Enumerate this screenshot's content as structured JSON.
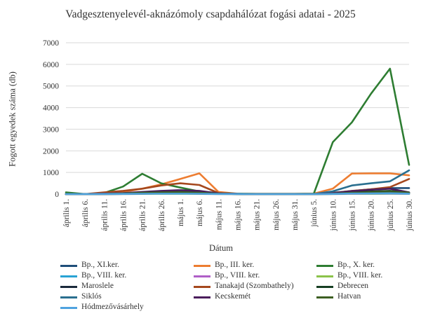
{
  "chart_data": {
    "type": "line",
    "title": "Vadgesztenyelevél-aknázómoly csapdahálózat fogási adatai - 2025",
    "xlabel": "Dátum",
    "ylabel": "Fogott egyedek száma (db)",
    "ylim": [
      0,
      7000
    ],
    "yticks": [
      "0",
      "1000",
      "2000",
      "3000",
      "4000",
      "5000",
      "6000",
      "7000"
    ],
    "grid": true,
    "legend_position": "bottom",
    "categories": [
      "április 1.",
      "április 6.",
      "április 11.",
      "április 16.",
      "április 21.",
      "április 26.",
      "május 1.",
      "május 6.",
      "május 11.",
      "május 16.",
      "május 21.",
      "május 26.",
      "május 31.",
      "június 5.",
      "június 10.",
      "június 15.",
      "június 20.",
      "június 25.",
      "június 30."
    ],
    "x": [
      1,
      6,
      11,
      16,
      21,
      26,
      31,
      36,
      41,
      46,
      51,
      56,
      61,
      66,
      71,
      76,
      81,
      86,
      91
    ],
    "series": [
      {
        "name": "Bp., XI.ker.",
        "color": "#1f4e79",
        "points": [
          [
            1,
            0
          ],
          [
            6,
            0
          ],
          [
            11,
            20
          ],
          [
            16,
            40
          ],
          [
            21,
            60
          ],
          [
            26,
            90
          ],
          [
            31,
            120
          ],
          [
            36,
            90
          ],
          [
            41,
            30
          ],
          [
            46,
            10
          ],
          [
            51,
            5
          ],
          [
            56,
            5
          ],
          [
            61,
            5
          ],
          [
            66,
            5
          ],
          [
            71,
            60
          ],
          [
            76,
            140
          ],
          [
            81,
            220
          ],
          [
            86,
            280
          ],
          [
            91,
            280
          ]
        ]
      },
      {
        "name": "Bp., III. ker.",
        "color": "#ed7d31",
        "points": [
          [
            1,
            0
          ],
          [
            6,
            0
          ],
          [
            11,
            30
          ],
          [
            16,
            100
          ],
          [
            21,
            250
          ],
          [
            26,
            450
          ],
          [
            31,
            700
          ],
          [
            36,
            960
          ],
          [
            41,
            100
          ],
          [
            46,
            20
          ],
          [
            51,
            10
          ],
          [
            56,
            10
          ],
          [
            61,
            10
          ],
          [
            66,
            20
          ],
          [
            71,
            250
          ],
          [
            76,
            950
          ],
          [
            81,
            960
          ],
          [
            86,
            960
          ],
          [
            91,
            870
          ]
        ]
      },
      {
        "name": "Bp., X. ker.",
        "color": "#2e7d32",
        "points": [
          [
            1,
            80
          ],
          [
            6,
            0
          ],
          [
            11,
            50
          ],
          [
            16,
            350
          ],
          [
            21,
            940
          ],
          [
            26,
            500
          ],
          [
            31,
            300
          ],
          [
            36,
            120
          ],
          [
            41,
            50
          ],
          [
            46,
            20
          ],
          [
            51,
            10
          ],
          [
            56,
            10
          ],
          [
            61,
            10
          ],
          [
            66,
            20
          ],
          [
            71,
            2400
          ],
          [
            76,
            3320
          ],
          [
            81,
            4640
          ],
          [
            86,
            5800
          ],
          [
            91,
            1350
          ]
        ]
      },
      {
        "name": "Bp., VIII. ker.",
        "color": "#29a3d4",
        "points": [
          [
            1,
            0
          ],
          [
            6,
            0
          ],
          [
            11,
            0
          ],
          [
            16,
            5
          ],
          [
            21,
            10
          ],
          [
            26,
            10
          ],
          [
            31,
            10
          ],
          [
            36,
            10
          ],
          [
            41,
            5
          ],
          [
            46,
            5
          ],
          [
            51,
            0
          ],
          [
            56,
            0
          ],
          [
            61,
            0
          ],
          [
            66,
            0
          ],
          [
            71,
            5
          ],
          [
            76,
            10
          ],
          [
            81,
            10
          ],
          [
            86,
            20
          ],
          [
            91,
            10
          ]
        ]
      },
      {
        "name": "Bp., VIII. ker.",
        "color": "#b05fc7",
        "points": [
          [
            1,
            0
          ],
          [
            6,
            0
          ],
          [
            11,
            0
          ],
          [
            16,
            5
          ],
          [
            21,
            10
          ],
          [
            26,
            15
          ],
          [
            31,
            15
          ],
          [
            36,
            10
          ],
          [
            41,
            5
          ],
          [
            46,
            5
          ],
          [
            51,
            0
          ],
          [
            56,
            0
          ],
          [
            61,
            0
          ],
          [
            66,
            0
          ],
          [
            71,
            5
          ],
          [
            76,
            10
          ],
          [
            81,
            15
          ],
          [
            86,
            20
          ],
          [
            91,
            15
          ]
        ]
      },
      {
        "name": "Bp., VIII. ker.",
        "color": "#8bc34a",
        "points": [
          [
            1,
            0
          ],
          [
            6,
            0
          ],
          [
            11,
            0
          ],
          [
            16,
            5
          ],
          [
            21,
            10
          ],
          [
            26,
            10
          ],
          [
            31,
            10
          ],
          [
            36,
            10
          ],
          [
            41,
            5
          ],
          [
            46,
            5
          ],
          [
            51,
            0
          ],
          [
            56,
            0
          ],
          [
            61,
            0
          ],
          [
            66,
            0
          ],
          [
            71,
            5
          ],
          [
            76,
            15
          ],
          [
            81,
            20
          ],
          [
            86,
            25
          ],
          [
            91,
            15
          ]
        ]
      },
      {
        "name": "Maroslele",
        "color": "#1b2a3c",
        "points": [
          [
            1,
            0
          ],
          [
            6,
            0
          ],
          [
            11,
            0
          ],
          [
            16,
            10
          ],
          [
            21,
            20
          ],
          [
            26,
            30
          ],
          [
            31,
            30
          ],
          [
            36,
            20
          ],
          [
            41,
            10
          ],
          [
            46,
            5
          ],
          [
            51,
            0
          ],
          [
            56,
            0
          ],
          [
            61,
            0
          ],
          [
            66,
            0
          ],
          [
            71,
            10
          ],
          [
            76,
            30
          ],
          [
            81,
            60
          ],
          [
            86,
            80
          ],
          [
            91,
            50
          ]
        ]
      },
      {
        "name": "Tanakajd (Szombathely)",
        "color": "#a5481e",
        "points": [
          [
            1,
            0
          ],
          [
            6,
            0
          ],
          [
            11,
            80
          ],
          [
            16,
            150
          ],
          [
            21,
            250
          ],
          [
            26,
            400
          ],
          [
            31,
            500
          ],
          [
            36,
            420
          ],
          [
            41,
            50
          ],
          [
            46,
            10
          ],
          [
            51,
            5
          ],
          [
            56,
            5
          ],
          [
            61,
            5
          ],
          [
            66,
            5
          ],
          [
            71,
            50
          ],
          [
            76,
            150
          ],
          [
            81,
            220
          ],
          [
            86,
            320
          ],
          [
            91,
            700
          ]
        ]
      },
      {
        "name": "Debrecen",
        "color": "#173f23",
        "points": [
          [
            1,
            0
          ],
          [
            6,
            0
          ],
          [
            11,
            10
          ],
          [
            16,
            20
          ],
          [
            21,
            30
          ],
          [
            26,
            40
          ],
          [
            31,
            50
          ],
          [
            36,
            40
          ],
          [
            41,
            20
          ],
          [
            46,
            5
          ],
          [
            51,
            0
          ],
          [
            56,
            0
          ],
          [
            61,
            0
          ],
          [
            66,
            0
          ],
          [
            71,
            30
          ],
          [
            76,
            90
          ],
          [
            81,
            120
          ],
          [
            86,
            150
          ],
          [
            91,
            60
          ]
        ]
      },
      {
        "name": "Siklós",
        "color": "#2a6f8f",
        "points": [
          [
            1,
            0
          ],
          [
            6,
            0
          ],
          [
            11,
            10
          ],
          [
            16,
            20
          ],
          [
            21,
            40
          ],
          [
            26,
            60
          ],
          [
            31,
            60
          ],
          [
            36,
            40
          ],
          [
            41,
            20
          ],
          [
            46,
            5
          ],
          [
            51,
            0
          ],
          [
            56,
            0
          ],
          [
            61,
            0
          ],
          [
            66,
            0
          ],
          [
            71,
            130
          ],
          [
            76,
            400
          ],
          [
            81,
            500
          ],
          [
            86,
            590
          ],
          [
            91,
            1100
          ]
        ]
      },
      {
        "name": "Kecskemét",
        "color": "#4b1d5c",
        "points": [
          [
            1,
            0
          ],
          [
            6,
            0
          ],
          [
            11,
            20
          ],
          [
            16,
            50
          ],
          [
            21,
            100
          ],
          [
            26,
            150
          ],
          [
            31,
            180
          ],
          [
            36,
            150
          ],
          [
            41,
            30
          ],
          [
            46,
            10
          ],
          [
            51,
            0
          ],
          [
            56,
            0
          ],
          [
            61,
            0
          ],
          [
            66,
            0
          ],
          [
            71,
            40
          ],
          [
            76,
            140
          ],
          [
            81,
            200
          ],
          [
            86,
            250
          ],
          [
            91,
            80
          ]
        ]
      },
      {
        "name": "Hatvan",
        "color": "#3d5f22",
        "points": [
          [
            1,
            0
          ],
          [
            6,
            0
          ],
          [
            11,
            10
          ],
          [
            16,
            30
          ],
          [
            21,
            60
          ],
          [
            26,
            80
          ],
          [
            31,
            90
          ],
          [
            36,
            60
          ],
          [
            41,
            20
          ],
          [
            46,
            5
          ],
          [
            51,
            0
          ],
          [
            56,
            0
          ],
          [
            61,
            0
          ],
          [
            66,
            0
          ],
          [
            71,
            20
          ],
          [
            76,
            60
          ],
          [
            81,
            90
          ],
          [
            86,
            110
          ],
          [
            91,
            70
          ]
        ]
      },
      {
        "name": "Hódmezővásárhely",
        "color": "#4fa3e0",
        "points": [
          [
            1,
            0
          ],
          [
            6,
            0
          ],
          [
            11,
            5
          ],
          [
            16,
            10
          ],
          [
            21,
            15
          ],
          [
            26,
            20
          ],
          [
            31,
            20
          ],
          [
            36,
            15
          ],
          [
            41,
            5
          ],
          [
            46,
            5
          ],
          [
            51,
            0
          ],
          [
            56,
            0
          ],
          [
            61,
            0
          ],
          [
            66,
            0
          ],
          [
            71,
            10
          ],
          [
            76,
            25
          ],
          [
            81,
            30
          ],
          [
            86,
            40
          ],
          [
            91,
            20
          ]
        ]
      }
    ]
  }
}
